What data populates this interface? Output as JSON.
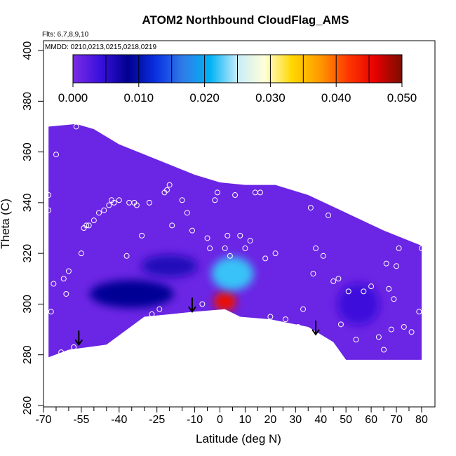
{
  "chart_data": {
    "type": "heatmap",
    "title": "ATOM2 Northbound CloudFlag_AMS",
    "annotations": [
      "Flts: 6,7,8,9,10",
      "MMDD: 0210,0213,0215,0218,0219"
    ],
    "xlabel": "Latitude (deg N)",
    "ylabel": "Theta (C)",
    "xlim": [
      -70,
      80
    ],
    "ylim": [
      260,
      400
    ],
    "x_ticks": [
      -70,
      -55,
      -40,
      -25,
      -10,
      0,
      10,
      20,
      30,
      40,
      50,
      60,
      70,
      80
    ],
    "x_minor_ticks": [
      -65,
      -60,
      -50,
      -45,
      -35,
      -30,
      -20,
      -15,
      -5,
      5,
      15,
      25,
      35,
      45,
      55,
      65,
      75
    ],
    "y_ticks": [
      260,
      280,
      300,
      320,
      340,
      360,
      380,
      400
    ],
    "colorbar": {
      "min": 0.0,
      "max": 0.05,
      "tick_values": [
        0.0,
        0.01,
        0.02,
        0.03,
        0.04,
        0.05
      ],
      "tick_labels": [
        "0.000",
        "0.010",
        "0.020",
        "0.030",
        "0.040",
        "0.050"
      ],
      "colors": [
        "#7b2be6",
        "#3a10dc",
        "#00008f",
        "#0a2fe0",
        "#2f7be8",
        "#00b2f5",
        "#c8ecfb",
        "#ffffd6",
        "#ffd700",
        "#ff9a00",
        "#ff3a00",
        "#e80000",
        "#7a0d00"
      ]
    },
    "background_value": 0.001,
    "domain_boundary": {
      "top": [
        [
          -68,
          370
        ],
        [
          -57,
          371
        ],
        [
          -50,
          369
        ],
        [
          -40,
          363
        ],
        [
          -25,
          357
        ],
        [
          -10,
          351
        ],
        [
          0,
          348
        ],
        [
          10,
          347
        ],
        [
          22,
          347
        ],
        [
          35,
          343
        ],
        [
          50,
          336
        ],
        [
          65,
          329
        ],
        [
          80,
          323
        ]
      ],
      "bottom": [
        [
          80,
          278
        ],
        [
          60,
          278
        ],
        [
          50,
          278
        ],
        [
          45,
          285
        ],
        [
          35,
          291
        ],
        [
          20,
          294
        ],
        [
          8,
          295
        ],
        [
          2,
          298
        ],
        [
          -10,
          297
        ],
        [
          -30,
          295
        ],
        [
          -45,
          284
        ],
        [
          -60,
          282
        ],
        [
          -68,
          279
        ]
      ]
    },
    "features": [
      {
        "name": "cloud-core",
        "lat": 2,
        "theta": 301,
        "value": 0.045
      },
      {
        "name": "cloud-upper",
        "lat": 5,
        "theta": 312,
        "value": 0.022
      },
      {
        "name": "southern-band",
        "lat": -35,
        "theta": 304,
        "value": 0.008
      },
      {
        "name": "southern-band-edge",
        "lat": -20,
        "theta": 315,
        "value": 0.006
      },
      {
        "name": "northern-wisp",
        "lat": 55,
        "theta": 300,
        "value": 0.004
      }
    ],
    "observation_points": [
      [
        -68,
        343
      ],
      [
        -68,
        337
      ],
      [
        -67,
        297
      ],
      [
        -67,
        278
      ],
      [
        -66,
        308
      ],
      [
        -65,
        359
      ],
      [
        -63,
        281
      ],
      [
        -62,
        310
      ],
      [
        -61,
        304
      ],
      [
        -60,
        313
      ],
      [
        -58,
        283
      ],
      [
        -57,
        370
      ],
      [
        -55,
        320
      ],
      [
        -54,
        330
      ],
      [
        -53,
        331
      ],
      [
        -52,
        331
      ],
      [
        -50,
        333
      ],
      [
        -48,
        336
      ],
      [
        -46,
        337
      ],
      [
        -44,
        339
      ],
      [
        -43,
        341
      ],
      [
        -42,
        340
      ],
      [
        -40,
        341
      ],
      [
        -37,
        319
      ],
      [
        -36,
        340
      ],
      [
        -34,
        340
      ],
      [
        -33,
        339
      ],
      [
        -31,
        327
      ],
      [
        -28,
        340
      ],
      [
        -27,
        296
      ],
      [
        -24,
        298
      ],
      [
        -22,
        344
      ],
      [
        -21,
        345
      ],
      [
        -20,
        347
      ],
      [
        -19,
        331
      ],
      [
        -15,
        341
      ],
      [
        -13,
        336
      ],
      [
        -11,
        329
      ],
      [
        -9,
        296
      ],
      [
        -7,
        300
      ],
      [
        -5,
        326
      ],
      [
        -4,
        322
      ],
      [
        -2,
        341
      ],
      [
        -1,
        344
      ],
      [
        2,
        322
      ],
      [
        3,
        327
      ],
      [
        4,
        319
      ],
      [
        6,
        343
      ],
      [
        8,
        327
      ],
      [
        10,
        322
      ],
      [
        12,
        325
      ],
      [
        14,
        344
      ],
      [
        16,
        344
      ],
      [
        18,
        318
      ],
      [
        20,
        295
      ],
      [
        22,
        320
      ],
      [
        26,
        294
      ],
      [
        31,
        291
      ],
      [
        33,
        298
      ],
      [
        36,
        338
      ],
      [
        37,
        312
      ],
      [
        38,
        322
      ],
      [
        41,
        319
      ],
      [
        43,
        335
      ],
      [
        45,
        309
      ],
      [
        47,
        310
      ],
      [
        48,
        292
      ],
      [
        51,
        305
      ],
      [
        54,
        286
      ],
      [
        57,
        305
      ],
      [
        60,
        307
      ],
      [
        63,
        287
      ],
      [
        65,
        282
      ],
      [
        66,
        316
      ],
      [
        67,
        306
      ],
      [
        68,
        290
      ],
      [
        69,
        302
      ],
      [
        70,
        315
      ],
      [
        71,
        322
      ],
      [
        73,
        291
      ],
      [
        76,
        289
      ],
      [
        79,
        297
      ],
      [
        80,
        322
      ]
    ],
    "arrows": [
      {
        "lat": -56,
        "theta": 284
      },
      {
        "lat": -11,
        "theta": 297
      },
      {
        "lat": 38,
        "theta": 288
      }
    ],
    "grid": false
  }
}
